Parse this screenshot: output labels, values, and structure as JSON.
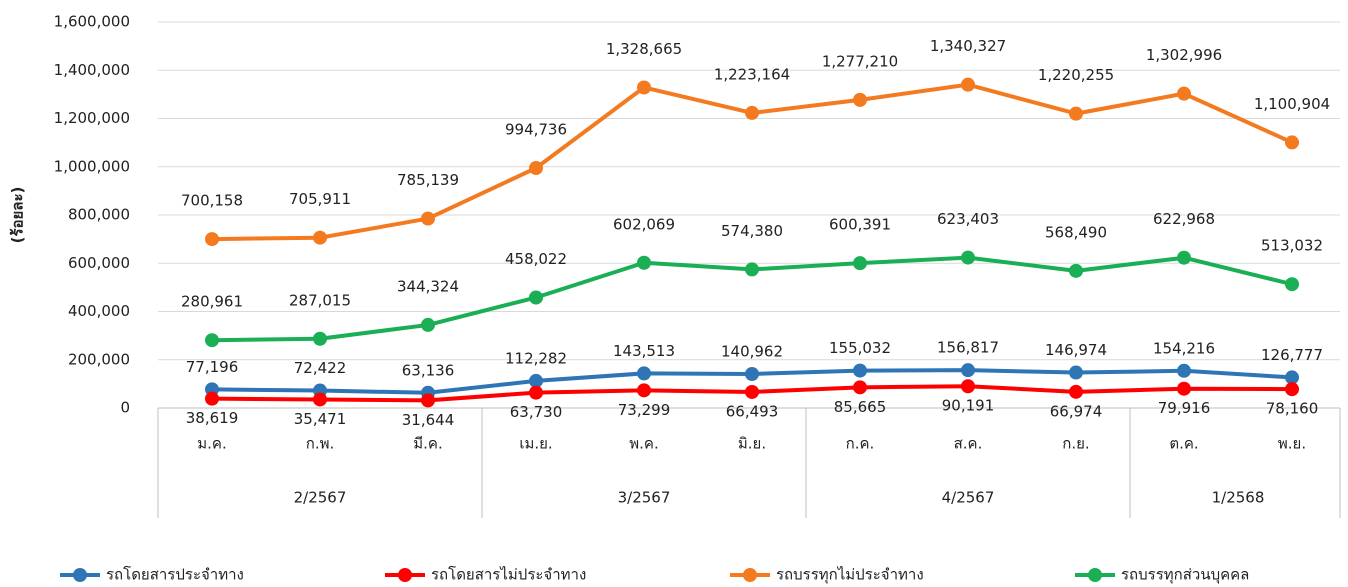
{
  "chart_data": {
    "type": "line",
    "y_label": "(ร้อยละ)",
    "categories": [
      "ม.ค.",
      "ก.พ.",
      "มี.ค.",
      "เม.ย.",
      "พ.ค.",
      "มิ.ย.",
      "ก.ค.",
      "ส.ค.",
      "ก.ย.",
      "ต.ค.",
      "พ.ย."
    ],
    "groups": [
      {
        "label": "2/2567",
        "span": 3
      },
      {
        "label": "3/2567",
        "span": 3
      },
      {
        "label": "4/2567",
        "span": 3
      },
      {
        "label": "1/2568",
        "span": 2
      }
    ],
    "ylim": [
      0,
      1600000
    ],
    "yticks": [
      0,
      {
        "value": 200000,
        "label": "200,000"
      },
      {
        "value": 400000,
        "label": "400,000"
      },
      {
        "value": 600000,
        "label": "600,000"
      },
      {
        "value": 800000,
        "label": "800,000"
      },
      {
        "value": 1000000,
        "label": "1,000,000"
      },
      {
        "value": 1200000,
        "label": "1,200,000"
      },
      {
        "value": 1400000,
        "label": "1,400,000"
      },
      {
        "value": 1600000,
        "label": "1,600,000"
      }
    ],
    "grid": true,
    "legend": "bottom",
    "series": [
      {
        "name": "รถโดยสารประจำทาง",
        "color": "#2e75b6",
        "label_side": "above",
        "values": [
          77196,
          72422,
          63136,
          112282,
          143513,
          140962,
          155032,
          156817,
          146974,
          154216,
          126777
        ],
        "value_labels": [
          "77,196",
          "72,422",
          "63,136",
          "112,282",
          "143,513",
          "140,962",
          "155,032",
          "156,817",
          "146,974",
          "154,216",
          "126,777"
        ]
      },
      {
        "name": "รถโดยสารไม่ประจำทาง",
        "color": "#ff0000",
        "label_side": "below",
        "values": [
          38619,
          35471,
          31644,
          63730,
          73299,
          66493,
          85665,
          90191,
          66974,
          79916,
          78160
        ],
        "value_labels": [
          "38,619",
          "35,471",
          "31,644",
          "63,730",
          "73,299",
          "66,493",
          "85,665",
          "90,191",
          "66,974",
          "79,916",
          "78,160"
        ]
      },
      {
        "name": "รถบรรทุกไม่ประจำทาง",
        "color": "#f47a20",
        "label_side": "above",
        "values": [
          700158,
          705911,
          785139,
          994736,
          1328665,
          1223164,
          1277210,
          1340327,
          1220255,
          1302996,
          1100904
        ],
        "value_labels": [
          "700,158",
          "705,911",
          "785,139",
          "994,736",
          "1,328,665",
          "1,223,164",
          "1,277,210",
          "1,340,327",
          "1,220,255",
          "1,302,996",
          "1,100,904"
        ]
      },
      {
        "name": "รถบรรทุกส่วนบุคคล",
        "color": "#1aaf54",
        "label_side": "above",
        "values": [
          280961,
          287015,
          344324,
          458022,
          602069,
          574380,
          600391,
          623403,
          568490,
          622968,
          513032
        ],
        "value_labels": [
          "280,961",
          "287,015",
          "344,324",
          "458,022",
          "602,069",
          "574,380",
          "600,391",
          "623,403",
          "568,490",
          "622,968",
          "513,032"
        ]
      }
    ]
  }
}
